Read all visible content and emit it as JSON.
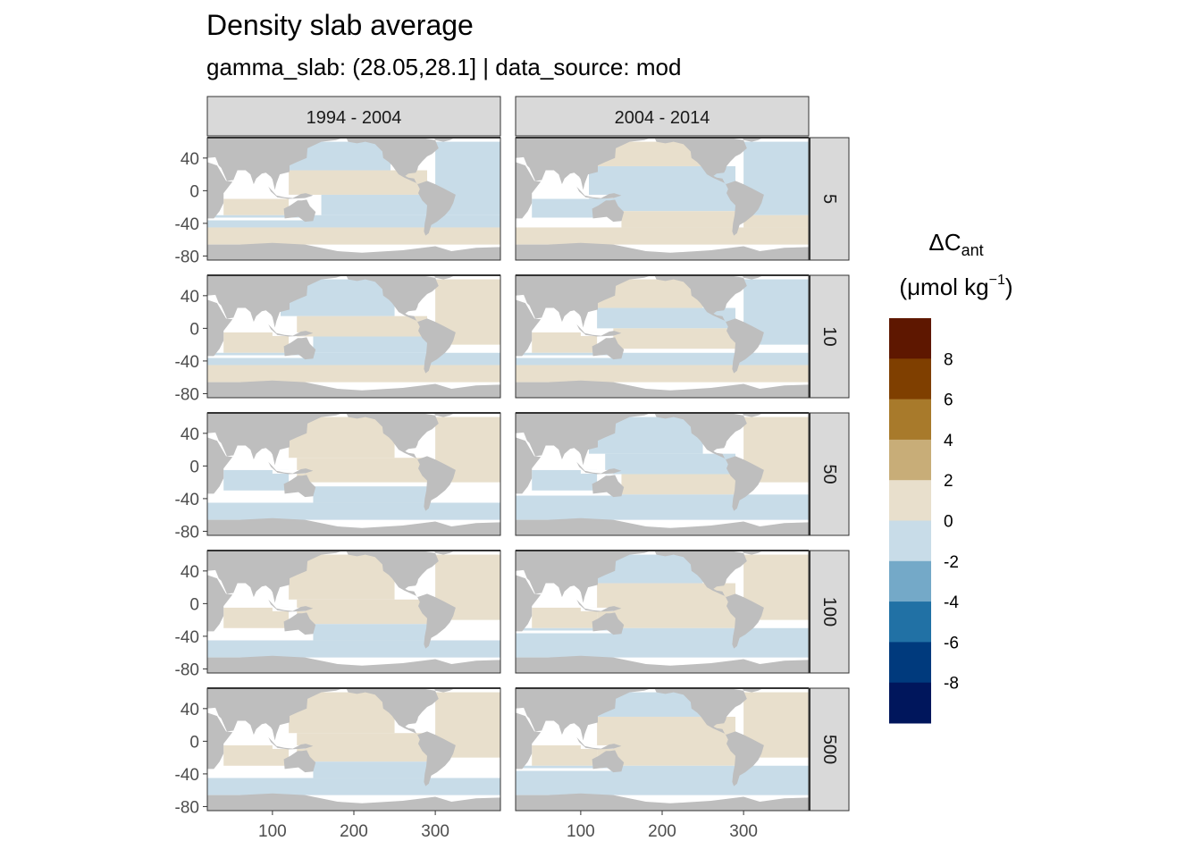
{
  "title": "Density slab average",
  "subtitle": "gamma_slab: (28.05,28.1] | data_source: mod",
  "chart_data": {
    "type": "heatmap",
    "title": "Density slab average",
    "subtitle": "gamma_slab: (28.05,28.1] | data_source: mod",
    "facet_columns": [
      "1994 - 2004",
      "2004 - 2014"
    ],
    "facet_rows": [
      "5",
      "10",
      "50",
      "100",
      "500"
    ],
    "x_ticks": [
      100,
      200,
      300
    ],
    "y_ticks": [
      40,
      0,
      -40,
      -80
    ],
    "xlim": [
      20,
      380
    ],
    "ylim": [
      -85,
      65
    ],
    "legend": {
      "title_main": "ΔC",
      "title_sub": "ant",
      "unit_prefix": "(μmol kg",
      "unit_sup": "−1",
      "unit_suffix": ")",
      "placement": "right",
      "breaks": [
        -10,
        -8,
        -6,
        -4,
        -2,
        0,
        2,
        4,
        6,
        8,
        10
      ],
      "labels": [
        "8",
        "6",
        "4",
        "2",
        "0",
        "-2",
        "-4",
        "-6",
        "-8"
      ],
      "colors": [
        "#5e1700",
        "#7f3f00",
        "#a87a2b",
        "#c8ad78",
        "#e8dfcc",
        "#c8dce8",
        "#74a9c8",
        "#2171a5",
        "#003a7d",
        "#00165c"
      ]
    },
    "panels_dominant": [
      [
        "mixed",
        "mixed"
      ],
      [
        "mixed",
        "mixed"
      ],
      [
        "mixed",
        "mixed"
      ],
      [
        "mixed",
        "mixed"
      ],
      [
        "mixed",
        "mixed"
      ]
    ],
    "value_bins": [
      "0 to 2",
      "-2 to 0"
    ],
    "land_color": "#bebebe",
    "missing_color": "#ffffff",
    "strip_color": "#d9d9d9"
  }
}
